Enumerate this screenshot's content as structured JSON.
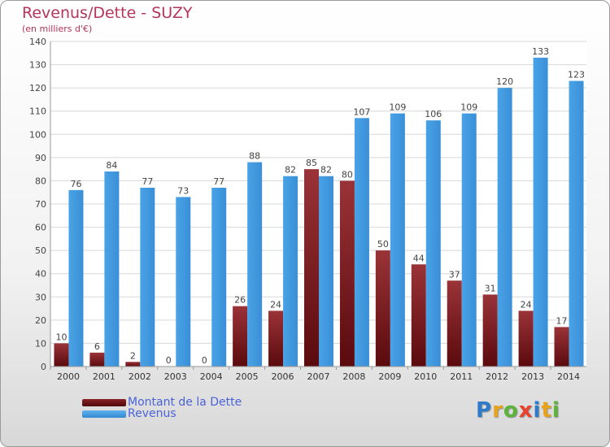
{
  "title": "Revenus/Dette - SUZY",
  "subtitle": "(en milliers d'€)",
  "logo": {
    "text": "Proxiti",
    "colors": [
      "#2f7bc9",
      "#e8a21c",
      "#5db33a",
      "#e8432e",
      "#2f7bc9",
      "#e8a21c",
      "#5db33a"
    ]
  },
  "legend": [
    {
      "label": "Montant de la Dette",
      "color": "#6b0f12"
    },
    {
      "label": "Revenus",
      "color": "#3f97dc"
    }
  ],
  "chart_data": {
    "type": "bar",
    "title": "Revenus/Dette - SUZY",
    "subtitle": "(en milliers d'€)",
    "categories": [
      "2000",
      "2001",
      "2002",
      "2003",
      "2004",
      "2005",
      "2006",
      "2007",
      "2008",
      "2009",
      "2010",
      "2011",
      "2012",
      "2013",
      "2014"
    ],
    "series": [
      {
        "name": "Montant de la Dette",
        "color": "#6b0f12",
        "values": [
          10,
          6,
          2,
          0,
          0,
          26,
          24,
          85,
          80,
          50,
          44,
          37,
          31,
          24,
          17
        ]
      },
      {
        "name": "Revenus",
        "color": "#3f97dc",
        "values": [
          76,
          84,
          77,
          73,
          77,
          88,
          82,
          82,
          107,
          109,
          106,
          109,
          120,
          133,
          123
        ]
      }
    ],
    "ylim": [
      0,
      140
    ],
    "yticks": [
      0,
      10,
      20,
      30,
      40,
      50,
      60,
      70,
      80,
      90,
      100,
      110,
      120,
      130,
      140
    ],
    "grid": true,
    "legend_position": "bottom-left"
  }
}
